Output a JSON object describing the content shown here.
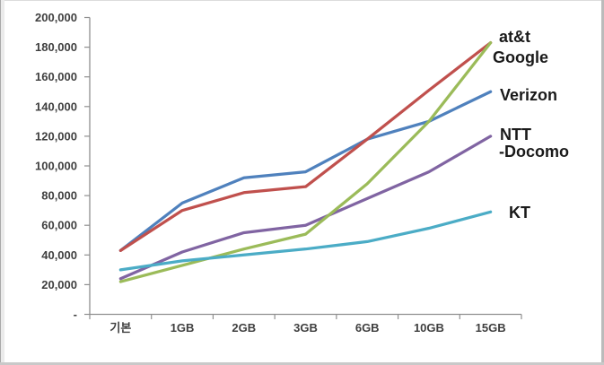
{
  "chart_data": {
    "type": "line",
    "title": "",
    "xlabel": "",
    "ylabel": "",
    "categories": [
      "기본",
      "1GB",
      "2GB",
      "3GB",
      "6GB",
      "10GB",
      "15GB"
    ],
    "y_axis": {
      "min": 0,
      "max": 200000,
      "step": 20000,
      "tick_labels": [
        "-",
        "20,000",
        "40,000",
        "60,000",
        "80,000",
        "100,000",
        "120,000",
        "140,000",
        "160,000",
        "180,000",
        "200,000"
      ]
    },
    "grid": false,
    "legend_position": "labels-at-line-ends-right",
    "axis_color": "#8F8F8F",
    "tick_label_color": "#3F3F3F",
    "series_label_color": "#1A1A1A",
    "series": [
      {
        "name": "at&t",
        "color": "#C0504D",
        "label_lines": [
          "at&t"
        ],
        "values": [
          43000,
          70000,
          82000,
          86000,
          118000,
          151000,
          183000
        ]
      },
      {
        "name": "Google",
        "color": "#9BBB59",
        "label_lines": [
          "Google"
        ],
        "values": [
          22000,
          33000,
          44000,
          54000,
          88000,
          130000,
          183000
        ]
      },
      {
        "name": "Verizon",
        "color": "#4F81BD",
        "label_lines": [
          "Verizon"
        ],
        "values": [
          43000,
          75000,
          92000,
          96000,
          118000,
          130000,
          150000
        ]
      },
      {
        "name": "NTT-Docomo",
        "color": "#8064A2",
        "label_lines": [
          "NTT",
          "-Docomo"
        ],
        "values": [
          24000,
          42000,
          55000,
          60000,
          78000,
          96000,
          120000
        ]
      },
      {
        "name": "KT",
        "color": "#4BACC6",
        "label_lines": [
          "KT"
        ],
        "values": [
          30000,
          36000,
          40000,
          44000,
          49000,
          58000,
          69000
        ]
      }
    ]
  }
}
